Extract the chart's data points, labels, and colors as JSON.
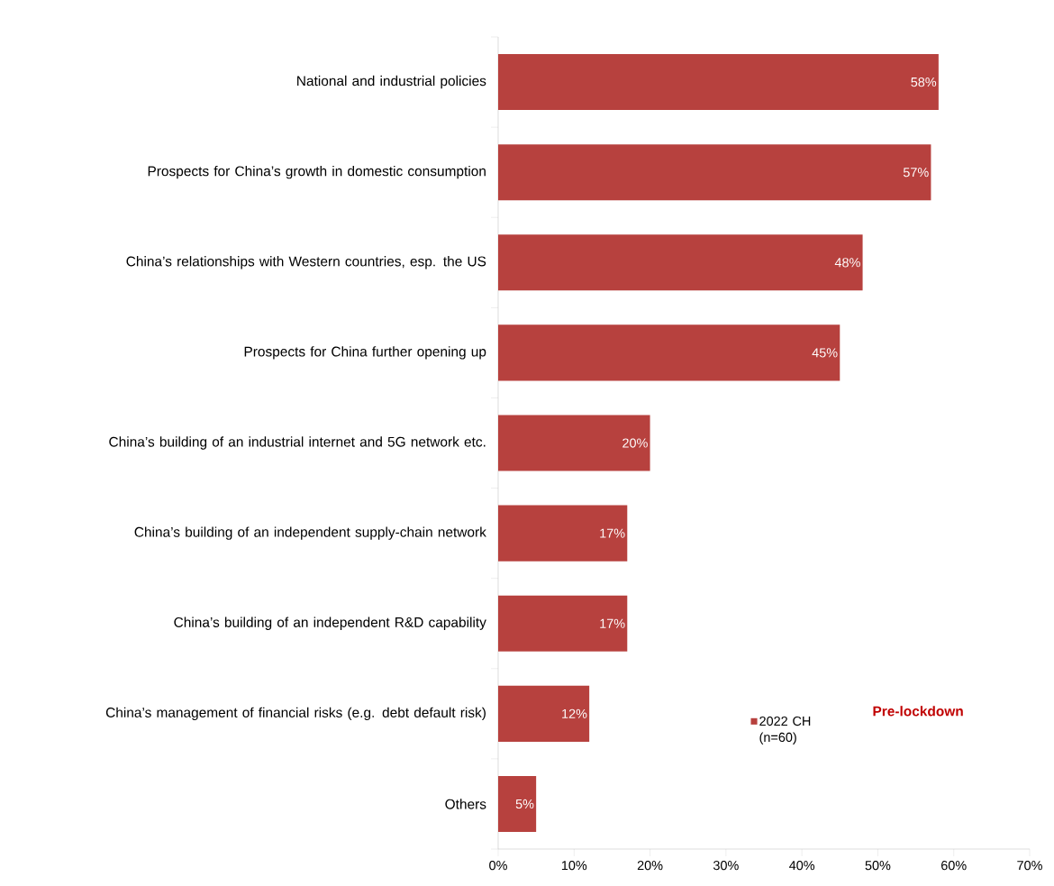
{
  "chart_data": {
    "type": "bar",
    "orientation": "horizontal",
    "categories": [
      "National and industrial policies",
      "Prospects for China’s growth in domestic consumption",
      "China’s relationships with Western countries, esp. the US",
      "Prospects for China further opening up",
      "China’s building of an industrial internet and 5G network etc.",
      "China’s building of an independent supply-chain network",
      "China’s building of an independent R&D capability",
      "China’s management of financial risks (e.g. debt default risk)",
      "Others"
    ],
    "series": [
      {
        "name": "2022 CH (n=60)",
        "color": "#b7413e",
        "values": [
          58,
          57,
          48,
          45,
          20,
          17,
          17,
          12,
          5
        ],
        "value_labels": [
          "58%",
          "57%",
          "48%",
          "45%",
          "20%",
          "17%",
          "17%",
          "12%",
          "5%"
        ]
      }
    ],
    "xlim": [
      0,
      70
    ],
    "xticks": [
      {
        "value": 0,
        "label": "0%"
      },
      {
        "value": 10,
        "label": "10%"
      },
      {
        "value": 20,
        "label": "20%"
      },
      {
        "value": 30,
        "label": "30%"
      },
      {
        "value": 40,
        "label": "40%"
      },
      {
        "value": 50,
        "label": "50%"
      },
      {
        "value": 60,
        "label": "60%"
      },
      {
        "value": 70,
        "label": "70%"
      }
    ],
    "legend": "bottom right",
    "annotations": [
      "Pre-lockdown"
    ]
  }
}
